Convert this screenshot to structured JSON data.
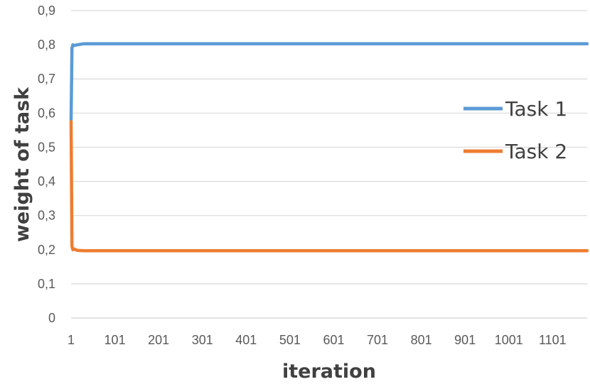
{
  "chart_data": {
    "type": "line",
    "xlabel": "iteration",
    "ylabel": "weight of task",
    "ylim": [
      0,
      0.9
    ],
    "y_ticks": [
      "0",
      "0,1",
      "0,2",
      "0,3",
      "0,4",
      "0,5",
      "0,6",
      "0,7",
      "0,8",
      "0,9"
    ],
    "x_ticks": [
      "1",
      "101",
      "201",
      "301",
      "401",
      "501",
      "601",
      "701",
      "801",
      "901",
      "1001",
      "1101"
    ],
    "xlim": [
      1,
      1180
    ],
    "grid": true,
    "legend_position": "right",
    "series": [
      {
        "name": "Task 1",
        "color": "#5B9BD5",
        "points": [
          [
            1,
            0.58
          ],
          [
            3,
            0.79
          ],
          [
            5,
            0.8
          ],
          [
            8,
            0.798
          ],
          [
            15,
            0.8
          ],
          [
            30,
            0.803
          ],
          [
            60,
            0.803
          ],
          [
            200,
            0.803
          ],
          [
            600,
            0.803
          ],
          [
            1000,
            0.803
          ],
          [
            1180,
            0.803
          ]
        ]
      },
      {
        "name": "Task 2",
        "color": "#ED7D31",
        "points": [
          [
            1,
            0.575
          ],
          [
            3,
            0.21
          ],
          [
            5,
            0.2
          ],
          [
            8,
            0.202
          ],
          [
            15,
            0.198
          ],
          [
            30,
            0.197
          ],
          [
            60,
            0.197
          ],
          [
            200,
            0.197
          ],
          [
            600,
            0.197
          ],
          [
            1000,
            0.197
          ],
          [
            1180,
            0.197
          ]
        ]
      }
    ]
  }
}
